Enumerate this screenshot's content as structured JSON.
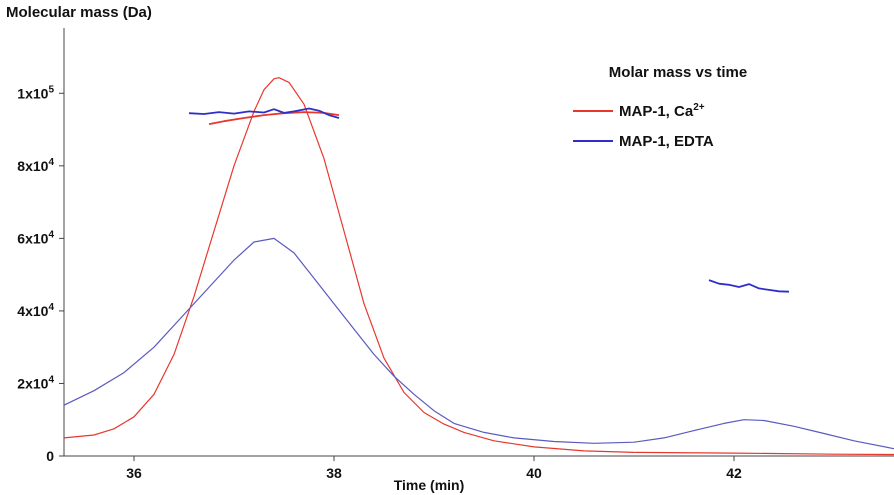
{
  "chart_data": {
    "type": "line",
    "ylabel": "Molecular mass (Da)",
    "xlabel": "Time (min)",
    "xlim": [
      35.3,
      43.6
    ],
    "ylim": [
      0,
      118000
    ],
    "x_ticks": [
      36,
      38,
      40,
      42
    ],
    "x_tick_labels": [
      "36",
      "38",
      "40",
      "42"
    ],
    "y_ticks": [
      0,
      20000,
      40000,
      60000,
      80000,
      100000
    ],
    "y_tick_labels": [
      {
        "base": "0",
        "exp": ""
      },
      {
        "base": "2x10",
        "exp": "4"
      },
      {
        "base": "4x10",
        "exp": "4"
      },
      {
        "base": "6x10",
        "exp": "4"
      },
      {
        "base": "8x10",
        "exp": "4"
      },
      {
        "base": "1x10",
        "exp": "5"
      }
    ],
    "grid": false,
    "legend": {
      "title": "Molar mass vs time",
      "placement": "top-right",
      "entries": [
        {
          "label": "MAP-1, Ca",
          "sup": "2+",
          "color": "#e8382e"
        },
        {
          "label": "MAP-1, EDTA",
          "sup": "",
          "color": "#2f2fc8"
        }
      ]
    },
    "series": [
      {
        "name": "MAP-1, Ca2+ (signal)",
        "color": "#e8382e",
        "points": [
          [
            35.3,
            5000
          ],
          [
            35.6,
            5800
          ],
          [
            35.8,
            7500
          ],
          [
            36.0,
            10800
          ],
          [
            36.2,
            17000
          ],
          [
            36.4,
            28000
          ],
          [
            36.6,
            44000
          ],
          [
            36.8,
            62000
          ],
          [
            37.0,
            80000
          ],
          [
            37.2,
            95000
          ],
          [
            37.3,
            101000
          ],
          [
            37.4,
            104000
          ],
          [
            37.45,
            104300
          ],
          [
            37.55,
            103000
          ],
          [
            37.7,
            97000
          ],
          [
            37.9,
            82000
          ],
          [
            38.1,
            62000
          ],
          [
            38.3,
            42000
          ],
          [
            38.5,
            27000
          ],
          [
            38.7,
            17500
          ],
          [
            38.9,
            12000
          ],
          [
            39.1,
            8800
          ],
          [
            39.3,
            6500
          ],
          [
            39.6,
            4200
          ],
          [
            40.0,
            2500
          ],
          [
            40.5,
            1400
          ],
          [
            41.0,
            1000
          ],
          [
            42.0,
            800
          ],
          [
            43.0,
            500
          ],
          [
            43.6,
            400
          ]
        ]
      },
      {
        "name": "MAP-1, EDTA (signal)",
        "color": "#5a5ac0",
        "points": [
          [
            35.3,
            14000
          ],
          [
            35.6,
            18000
          ],
          [
            35.9,
            23000
          ],
          [
            36.2,
            30000
          ],
          [
            36.5,
            39000
          ],
          [
            36.8,
            48000
          ],
          [
            37.0,
            54000
          ],
          [
            37.2,
            59000
          ],
          [
            37.4,
            60000
          ],
          [
            37.6,
            56000
          ],
          [
            37.8,
            49000
          ],
          [
            38.0,
            42000
          ],
          [
            38.2,
            35000
          ],
          [
            38.4,
            28000
          ],
          [
            38.6,
            22000
          ],
          [
            38.8,
            17000
          ],
          [
            39.0,
            12500
          ],
          [
            39.2,
            9000
          ],
          [
            39.5,
            6500
          ],
          [
            39.8,
            5000
          ],
          [
            40.2,
            4000
          ],
          [
            40.6,
            3500
          ],
          [
            41.0,
            3800
          ],
          [
            41.3,
            5000
          ],
          [
            41.6,
            7000
          ],
          [
            41.9,
            9000
          ],
          [
            42.1,
            10000
          ],
          [
            42.3,
            9800
          ],
          [
            42.6,
            8200
          ],
          [
            42.9,
            6200
          ],
          [
            43.2,
            4200
          ],
          [
            43.6,
            2000
          ]
        ]
      },
      {
        "name": "MAP-1, Ca2+ (molar mass)",
        "color": "#e8382e",
        "points": [
          [
            36.75,
            91500
          ],
          [
            36.9,
            92300
          ],
          [
            37.1,
            93200
          ],
          [
            37.3,
            94000
          ],
          [
            37.5,
            94500
          ],
          [
            37.7,
            94800
          ],
          [
            37.9,
            94600
          ],
          [
            38.05,
            94000
          ]
        ]
      },
      {
        "name": "MAP-1, EDTA (molar mass)",
        "color": "#2f2fc8",
        "points": [
          [
            36.55,
            94500
          ],
          [
            36.7,
            94300
          ],
          [
            36.85,
            94800
          ],
          [
            37.0,
            94400
          ],
          [
            37.15,
            95000
          ],
          [
            37.3,
            94700
          ],
          [
            37.4,
            95600
          ],
          [
            37.5,
            94600
          ],
          [
            37.6,
            95000
          ],
          [
            37.75,
            95800
          ],
          [
            37.85,
            95200
          ],
          [
            37.95,
            94000
          ],
          [
            38.05,
            93200
          ]
        ]
      },
      {
        "name": "MAP-1, EDTA (molar mass, peak 2)",
        "color": "#2f2fc8",
        "points": [
          [
            41.75,
            48500
          ],
          [
            41.85,
            47500
          ],
          [
            41.95,
            47200
          ],
          [
            42.05,
            46600
          ],
          [
            42.15,
            47400
          ],
          [
            42.25,
            46200
          ],
          [
            42.35,
            45800
          ],
          [
            42.45,
            45400
          ],
          [
            42.55,
            45300
          ]
        ]
      }
    ]
  }
}
